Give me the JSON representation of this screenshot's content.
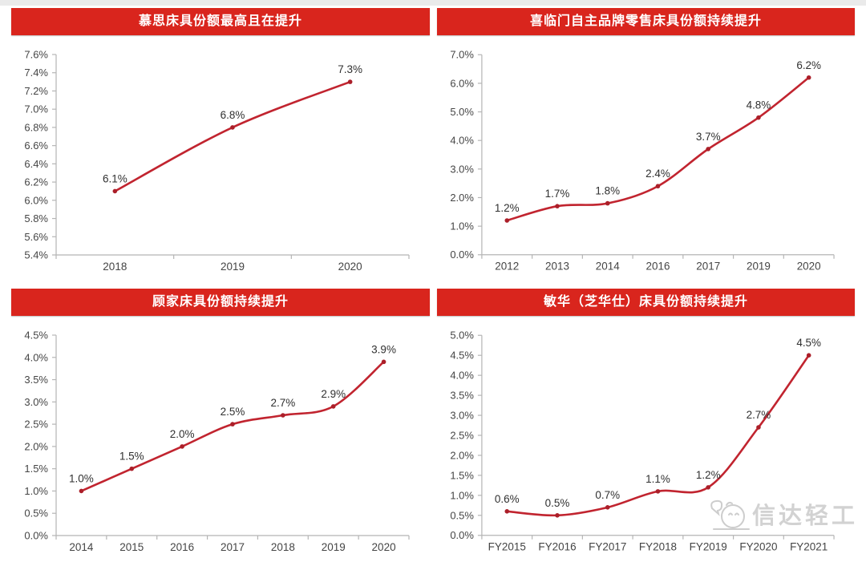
{
  "page": {
    "watermark": {
      "label": "信达轻工",
      "icon": "chick-mascot-icon"
    }
  },
  "theme": {
    "title_bg": "#d9251d",
    "title_text": "#ffffff",
    "line_color": "#c1242f",
    "marker_color": "#ab1f29",
    "axis_color": "#b5b5b5",
    "tick_label_color": "#454545",
    "data_label_color": "#303030",
    "watermark_color": "#d2d2d2"
  },
  "chart_data": [
    {
      "type": "line",
      "title": "慕思床具份额最高且在提升",
      "categories": [
        "2018",
        "2019",
        "2020"
      ],
      "values": [
        6.1,
        6.8,
        7.3
      ],
      "point_labels": [
        "6.1%",
        "6.8%",
        "7.3%"
      ],
      "ylim": [
        5.4,
        7.6
      ],
      "ytick": 0.2,
      "ytick_labels": [
        "5.4%",
        "5.6%",
        "5.8%",
        "6.0%",
        "6.2%",
        "6.4%",
        "6.6%",
        "6.8%",
        "7.0%",
        "7.2%",
        "7.4%",
        "7.6%"
      ],
      "grid": false,
      "legend": "none",
      "smooth": true
    },
    {
      "type": "line",
      "title": "喜临门自主品牌零售床具份额持续提升",
      "categories": [
        "2012",
        "2013",
        "2014",
        "2016",
        "2017",
        "2019",
        "2020"
      ],
      "values": [
        1.2,
        1.7,
        1.8,
        2.4,
        3.7,
        4.8,
        6.2
      ],
      "point_labels": [
        "1.2%",
        "1.7%",
        "1.8%",
        "2.4%",
        "3.7%",
        "4.8%",
        "6.2%"
      ],
      "ylim": [
        0,
        7
      ],
      "ytick": 1.0,
      "ytick_labels": [
        "0.0%",
        "1.0%",
        "2.0%",
        "3.0%",
        "4.0%",
        "5.0%",
        "6.0%",
        "7.0%"
      ],
      "grid": false,
      "legend": "none",
      "smooth": true
    },
    {
      "type": "line",
      "title": "顾家床具份额持续提升",
      "categories": [
        "2014",
        "2015",
        "2016",
        "2017",
        "2018",
        "2019",
        "2020"
      ],
      "values": [
        1.0,
        1.5,
        2.0,
        2.5,
        2.7,
        2.9,
        3.9
      ],
      "point_labels": [
        "1.0%",
        "1.5%",
        "2.0%",
        "2.5%",
        "2.7%",
        "2.9%",
        "3.9%"
      ],
      "ylim": [
        0,
        4.5
      ],
      "ytick": 0.5,
      "ytick_labels": [
        "0.0%",
        "0.5%",
        "1.0%",
        "1.5%",
        "2.0%",
        "2.5%",
        "3.0%",
        "3.5%",
        "4.0%",
        "4.5%"
      ],
      "grid": false,
      "legend": "none",
      "smooth": true
    },
    {
      "type": "line",
      "title": "敏华（芝华仕）床具份额持续提升",
      "categories": [
        "FY2015",
        "FY2016",
        "FY2017",
        "FY2018",
        "FY2019",
        "FY2020",
        "FY2021"
      ],
      "values": [
        0.6,
        0.5,
        0.7,
        1.1,
        1.2,
        2.7,
        4.5
      ],
      "point_labels": [
        "0.6%",
        "0.5%",
        "0.7%",
        "1.1%",
        "1.2%",
        "2.7%",
        "4.5%"
      ],
      "ylim": [
        0,
        5
      ],
      "ytick": 0.5,
      "ytick_labels": [
        "0.0%",
        "0.5%",
        "1.0%",
        "1.5%",
        "2.0%",
        "2.5%",
        "3.0%",
        "3.5%",
        "4.0%",
        "4.5%",
        "5.0%"
      ],
      "grid": false,
      "legend": "none",
      "smooth": true
    }
  ]
}
